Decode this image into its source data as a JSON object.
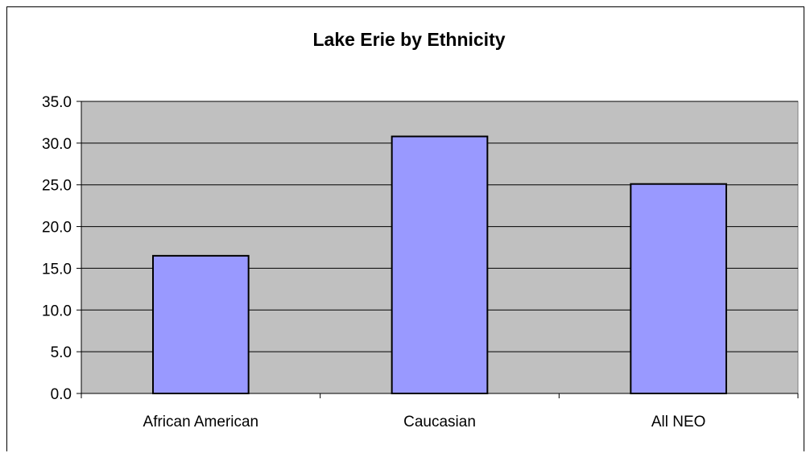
{
  "chart_data": {
    "type": "bar",
    "title": "Lake Erie by Ethnicity",
    "xlabel": "",
    "ylabel": "",
    "categories": [
      "African American",
      "Caucasian",
      "All NEO"
    ],
    "values": [
      16.5,
      30.8,
      25.1
    ],
    "ylim": [
      0,
      35
    ],
    "y_ticks": [
      "0.0",
      "5.0",
      "10.0",
      "15.0",
      "20.0",
      "25.0",
      "30.0",
      "35.0"
    ],
    "tick_step": 5,
    "grid": true,
    "legend": "none",
    "colors": {
      "bar_fill": "#9999ff",
      "bar_stroke": "#000000",
      "plot_background": "#c0c0c0",
      "grid": "#000000"
    }
  }
}
